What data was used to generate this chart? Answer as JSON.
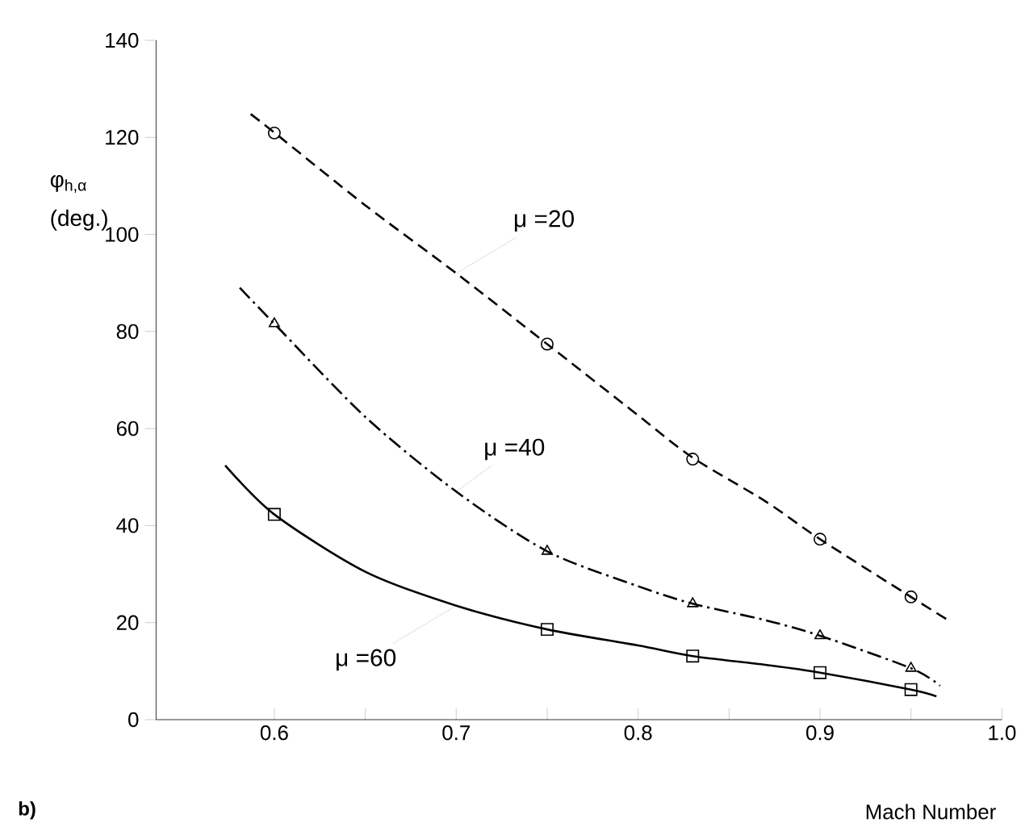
{
  "chart_data": {
    "type": "line",
    "title": "b)",
    "xlabel": "Mach Number",
    "ylabel": "φ$_{h,α}$ (deg.)",
    "xlim": [
      0.535,
      1.0
    ],
    "ylim": [
      0,
      140
    ],
    "xticks": [
      0.6,
      {
        "value": 0.65,
        "label": null
      },
      0.7,
      {
        "value": 0.75,
        "label": null
      },
      0.8,
      {
        "value": 0.85,
        "label": null
      },
      0.9,
      {
        "value": 0.95,
        "label": null
      },
      {
        "value": 1.0,
        "label": "1.0"
      }
    ],
    "yticks": [
      0,
      20,
      40,
      60,
      80,
      100,
      120,
      140
    ],
    "series": [
      {
        "name": "μ =20",
        "color": "#000000",
        "line_style": "dashed",
        "x": [
          0.587,
          0.6,
          0.65,
          0.7,
          0.75,
          0.8,
          0.83,
          0.87,
          0.9,
          0.95,
          0.97
        ],
        "values": [
          124.8,
          121,
          106,
          92,
          77.4,
          62.7,
          54,
          45,
          37.2,
          25.3,
          20.6
        ]
      },
      {
        "name": "μ =40",
        "color": "#000000",
        "line_style": "dashdot",
        "x": [
          0.581,
          0.6,
          0.65,
          0.7,
          0.75,
          0.8,
          0.83,
          0.87,
          0.9,
          0.95,
          0.966
        ],
        "values": [
          89,
          81.6,
          62.4,
          47,
          34.7,
          27.5,
          23.9,
          20.5,
          17.3,
          10.6,
          7
        ]
      },
      {
        "name": "μ =60",
        "color": "#000000",
        "line_style": "solid",
        "x": [
          0.573,
          0.6,
          0.65,
          0.7,
          0.75,
          0.8,
          0.83,
          0.87,
          0.9,
          0.95,
          0.964
        ],
        "values": [
          52.4,
          42.3,
          30.5,
          23.5,
          18.6,
          15.3,
          13.1,
          11.3,
          9.7,
          6.2,
          4.8
        ]
      },
      {
        "type": "scatter",
        "color": "#000000",
        "marker": "circle",
        "x": [
          0.6,
          0.75,
          0.83,
          0.9,
          0.95
        ],
        "values": [
          120.9,
          77.4,
          53.7,
          37.2,
          25.3
        ]
      },
      {
        "type": "scatter",
        "color": "#000000",
        "marker": "triangle",
        "x": [
          0.6,
          0.75,
          0.83,
          0.9,
          0.95
        ],
        "values": [
          81.6,
          34.7,
          23.9,
          17.3,
          10.6
        ]
      },
      {
        "type": "scatter",
        "color": "#000000",
        "marker": "square",
        "x": [
          0.6,
          0.75,
          0.83,
          0.9,
          0.95
        ],
        "values": [
          42.3,
          18.6,
          13.1,
          9.7,
          6.2
        ]
      }
    ]
  }
}
